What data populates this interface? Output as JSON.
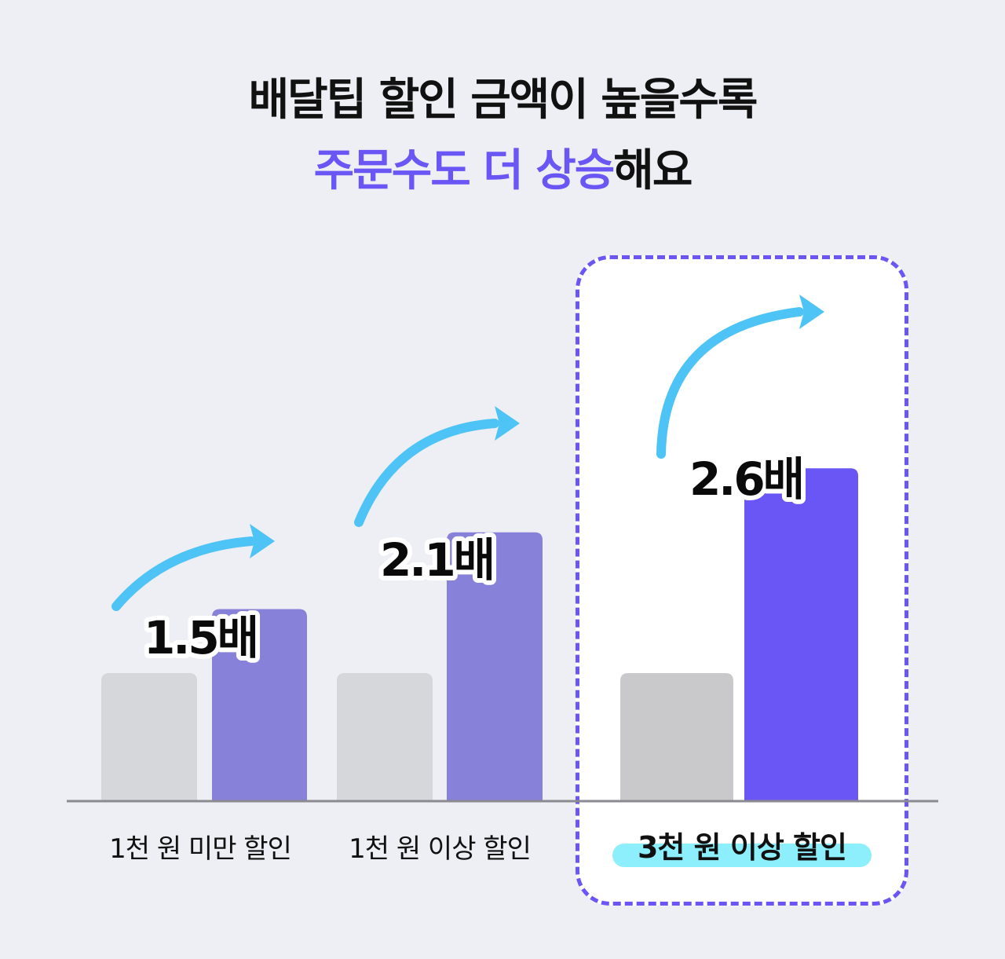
{
  "title": {
    "line1": "배달팁 할인 금액이 높을수록",
    "line2_accent": "주문수도 더 상승",
    "line2_rest": "해요"
  },
  "colors": {
    "background": "#eeeff4",
    "accent": "#6a55f5",
    "bar_base": "#d5d7db",
    "bar_base_highlight": "#c9c9cb",
    "bar_discount": "#8781d9",
    "bar_discount_highlight": "#6a55f5",
    "arrow": "#4ec3f5",
    "highlight_label_bg": "#8deefc"
  },
  "chart_data": {
    "type": "bar",
    "title": "",
    "categories": [
      "1천 원 미만 할인",
      "1천 원 이상 할인",
      "3천 원 이상 할인"
    ],
    "series": [
      {
        "values": [
          1.0,
          1.0,
          1.0
        ]
      },
      {
        "values": [
          1.5,
          2.1,
          2.6
        ]
      }
    ],
    "data_labels": [
      "1.5배",
      "2.1배",
      "2.6배"
    ],
    "highlighted_category": "3천 원 이상 할인",
    "grid": false,
    "legend": "none"
  }
}
